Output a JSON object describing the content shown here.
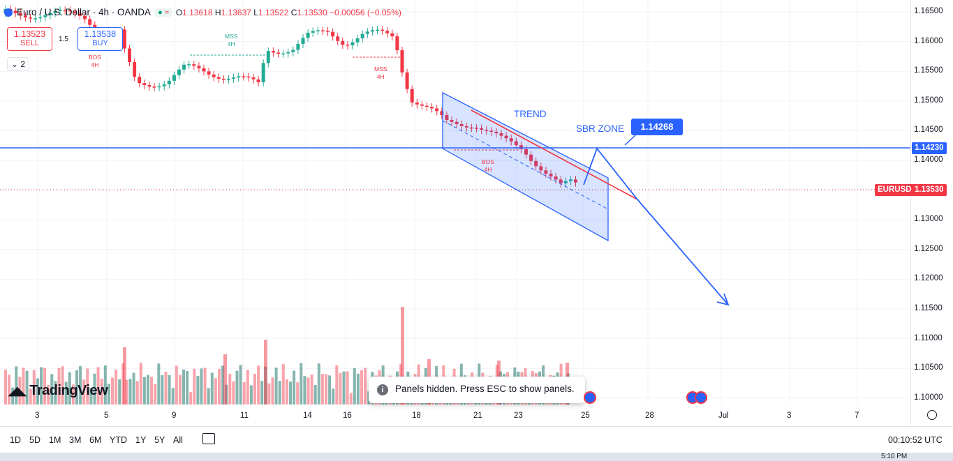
{
  "symbol": {
    "title": "Euro / U.S. Dollar · 4h · OANDA",
    "open_label": "O",
    "open": "1.13618",
    "high_label": "H",
    "high": "1.13637",
    "low_label": "L",
    "low": "1.13522",
    "close_label": "C",
    "close": "1.13530",
    "change": "−0.00056 (−0.05%)"
  },
  "trade": {
    "sell_price": "1.13523",
    "sell_label": "SELL",
    "buy_price": "1.13538",
    "buy_label": "BUY",
    "spread": "1.5",
    "indicators_count": "2"
  },
  "price_axis": {
    "ticks": [
      "1.16500",
      "1.16000",
      "1.15500",
      "1.15000",
      "1.14500",
      "1.14000",
      "1.13500",
      "1.13000",
      "1.12500",
      "1.12000",
      "1.11500",
      "1.11000",
      "1.10500",
      "1.10000"
    ]
  },
  "tags": {
    "level": "1.14230",
    "symbol_name": "EURUSD",
    "last_price": "1.13530"
  },
  "annotations": {
    "trend": "TREND",
    "sbr_zone": "SBR ZONE",
    "sbr_price": "1.14268",
    "bos": "BOS",
    "mss": "MSS",
    "tf": "4H"
  },
  "time_axis": [
    "3",
    "5",
    "9",
    "11",
    "14",
    "16",
    "18",
    "21",
    "23",
    "25",
    "28",
    "Jul",
    "3",
    "7"
  ],
  "timeframes": [
    "1D",
    "5D",
    "1M",
    "3M",
    "6M",
    "YTD",
    "1Y",
    "5Y",
    "All"
  ],
  "clock": "00:10:52 UTC",
  "toast": "Panels hidden. Press ESC to show panels.",
  "brand": "TradingView",
  "taskbar_time": "5:10 PM",
  "colors": {
    "up": "#22ab94",
    "down": "#f23645",
    "accent": "#2962ff"
  }
}
